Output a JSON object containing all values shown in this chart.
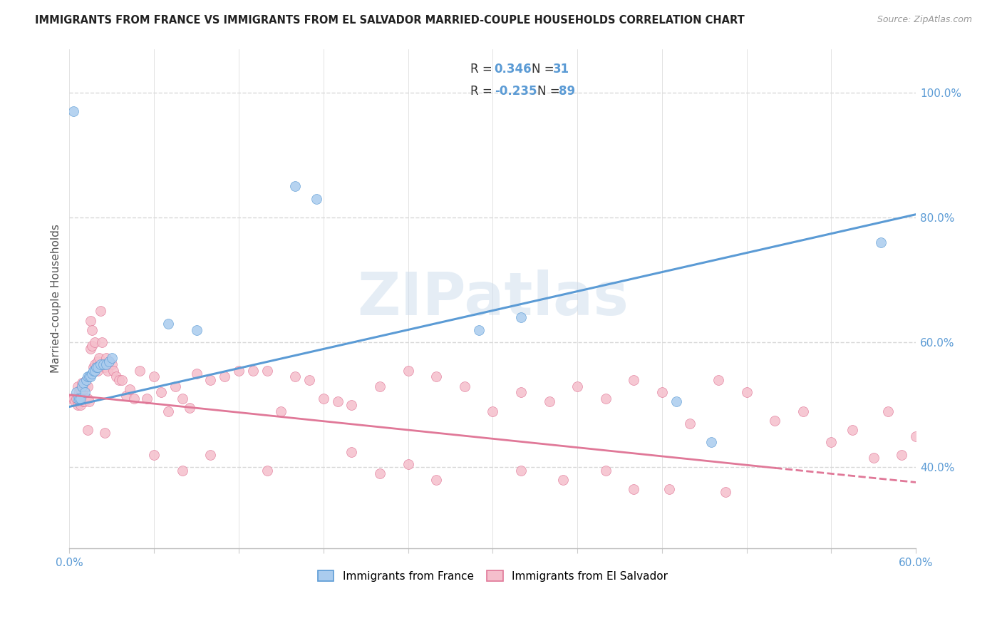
{
  "title": "IMMIGRANTS FROM FRANCE VS IMMIGRANTS FROM EL SALVADOR MARRIED-COUPLE HOUSEHOLDS CORRELATION CHART",
  "source": "Source: ZipAtlas.com",
  "ylabel": "Married-couple Households",
  "xlim": [
    0.0,
    0.6
  ],
  "ylim": [
    0.27,
    1.07
  ],
  "france_color": "#aaccee",
  "france_edge": "#5b9bd5",
  "es_color": "#f5bfcc",
  "es_edge": "#e07898",
  "france_R": 0.346,
  "france_N": 31,
  "el_salvador_R": -0.235,
  "el_salvador_N": 89,
  "france_trend": [
    0.0,
    0.6,
    0.497,
    0.805
  ],
  "es_trend_solid": [
    0.0,
    0.5,
    0.516,
    0.399
  ],
  "es_trend_dash": [
    0.5,
    0.6,
    0.399,
    0.376
  ],
  "watermark": "ZIPatlas",
  "bg_color": "#ffffff",
  "grid_color": "#d8d8d8",
  "axis_color": "#5b9bd5",
  "label_color": "#555555",
  "title_color": "#222222",
  "yticks_right": [
    0.4,
    0.6,
    0.8,
    1.0
  ],
  "ytick_labels": [
    "40.0%",
    "60.0%",
    "80.0%",
    "100.0%"
  ],
  "france_x": [
    0.003,
    0.005,
    0.006,
    0.007,
    0.008,
    0.009,
    0.01,
    0.011,
    0.012,
    0.013,
    0.014,
    0.015,
    0.016,
    0.017,
    0.018,
    0.019,
    0.02,
    0.022,
    0.024,
    0.026,
    0.028,
    0.03,
    0.07,
    0.09,
    0.16,
    0.175,
    0.29,
    0.32,
    0.43,
    0.455,
    0.575
  ],
  "france_y": [
    0.97,
    0.52,
    0.51,
    0.51,
    0.51,
    0.53,
    0.535,
    0.52,
    0.54,
    0.545,
    0.545,
    0.545,
    0.55,
    0.555,
    0.555,
    0.56,
    0.56,
    0.565,
    0.565,
    0.565,
    0.57,
    0.575,
    0.63,
    0.62,
    0.85,
    0.83,
    0.62,
    0.64,
    0.505,
    0.44,
    0.76
  ],
  "es_x": [
    0.002,
    0.003,
    0.004,
    0.005,
    0.006,
    0.006,
    0.007,
    0.007,
    0.008,
    0.008,
    0.009,
    0.009,
    0.01,
    0.01,
    0.011,
    0.011,
    0.012,
    0.012,
    0.013,
    0.013,
    0.014,
    0.015,
    0.015,
    0.016,
    0.016,
    0.017,
    0.018,
    0.018,
    0.019,
    0.02,
    0.02,
    0.021,
    0.022,
    0.023,
    0.025,
    0.026,
    0.027,
    0.028,
    0.03,
    0.031,
    0.033,
    0.035,
    0.037,
    0.04,
    0.043,
    0.046,
    0.05,
    0.055,
    0.06,
    0.065,
    0.07,
    0.075,
    0.08,
    0.085,
    0.09,
    0.1,
    0.11,
    0.12,
    0.13,
    0.14,
    0.15,
    0.16,
    0.17,
    0.18,
    0.19,
    0.2,
    0.22,
    0.24,
    0.26,
    0.28,
    0.3,
    0.32,
    0.34,
    0.36,
    0.38,
    0.4,
    0.42,
    0.44,
    0.46,
    0.48,
    0.5,
    0.52,
    0.54,
    0.555,
    0.57,
    0.58,
    0.59,
    0.6,
    0.61
  ],
  "es_y": [
    0.51,
    0.51,
    0.505,
    0.51,
    0.5,
    0.53,
    0.505,
    0.52,
    0.5,
    0.525,
    0.51,
    0.535,
    0.505,
    0.525,
    0.505,
    0.53,
    0.51,
    0.54,
    0.51,
    0.53,
    0.505,
    0.635,
    0.59,
    0.595,
    0.62,
    0.56,
    0.565,
    0.6,
    0.56,
    0.57,
    0.555,
    0.575,
    0.65,
    0.6,
    0.56,
    0.575,
    0.555,
    0.57,
    0.565,
    0.555,
    0.545,
    0.54,
    0.54,
    0.515,
    0.525,
    0.51,
    0.555,
    0.51,
    0.545,
    0.52,
    0.49,
    0.53,
    0.51,
    0.495,
    0.55,
    0.54,
    0.545,
    0.555,
    0.555,
    0.555,
    0.49,
    0.545,
    0.54,
    0.51,
    0.505,
    0.5,
    0.53,
    0.555,
    0.545,
    0.53,
    0.49,
    0.52,
    0.505,
    0.53,
    0.51,
    0.54,
    0.52,
    0.47,
    0.54,
    0.52,
    0.475,
    0.49,
    0.44,
    0.46,
    0.415,
    0.49,
    0.42,
    0.45,
    0.42
  ],
  "es_low_x": [
    0.013,
    0.025,
    0.06,
    0.08,
    0.1,
    0.14,
    0.2,
    0.22,
    0.24,
    0.26,
    0.32,
    0.35,
    0.38,
    0.4,
    0.425,
    0.465
  ],
  "es_low_y": [
    0.46,
    0.455,
    0.42,
    0.395,
    0.42,
    0.395,
    0.425,
    0.39,
    0.405,
    0.38,
    0.395,
    0.38,
    0.395,
    0.365,
    0.365,
    0.36
  ]
}
